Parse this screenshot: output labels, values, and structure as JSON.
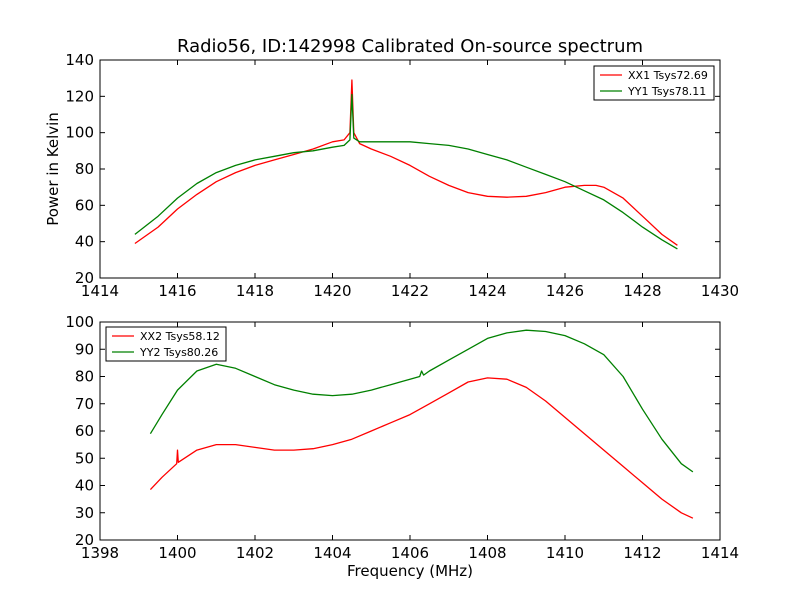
{
  "chart_data": [
    {
      "type": "line",
      "title": "Radio56, ID:142998 Calibrated On-source spectrum",
      "xlabel": "",
      "ylabel": "Power in Kelvin",
      "xlim": [
        1414,
        1430
      ],
      "ylim": [
        20,
        140
      ],
      "xticks": [
        "1414",
        "1416",
        "1418",
        "1420",
        "1422",
        "1424",
        "1426",
        "1428",
        "1430"
      ],
      "yticks": [
        "20",
        "40",
        "60",
        "80",
        "100",
        "120",
        "140"
      ],
      "legend": "top-right",
      "series": [
        {
          "name": "XX1 Tsys72.69",
          "color": "#ff0000",
          "x": [
            1414.9,
            1415.5,
            1416,
            1416.5,
            1417,
            1417.5,
            1418,
            1418.5,
            1419,
            1419.5,
            1420,
            1420.3,
            1420.45,
            1420.5,
            1420.55,
            1420.7,
            1421,
            1421.5,
            1422,
            1422.5,
            1423,
            1423.5,
            1424,
            1424.5,
            1425,
            1425.5,
            1426,
            1426.5,
            1426.8,
            1427,
            1427.5,
            1428,
            1428.5,
            1428.9
          ],
          "values": [
            39,
            48,
            58,
            66,
            73,
            78,
            82,
            85,
            88,
            91,
            95,
            96,
            100,
            129,
            100,
            94,
            91,
            87,
            82,
            76,
            71,
            67,
            65,
            64.5,
            65,
            67,
            70,
            71,
            71,
            70,
            64,
            54,
            44,
            38
          ]
        },
        {
          "name": "YY1 Tsys78.11",
          "color": "#008000",
          "x": [
            1414.9,
            1415.5,
            1416,
            1416.5,
            1417,
            1417.5,
            1418,
            1418.5,
            1419,
            1419.5,
            1420,
            1420.3,
            1420.45,
            1420.5,
            1420.55,
            1420.7,
            1421,
            1421.5,
            1422,
            1422.5,
            1423,
            1423.5,
            1424,
            1424.5,
            1425,
            1425.5,
            1426,
            1426.5,
            1427,
            1427.5,
            1428,
            1428.5,
            1428.9
          ],
          "values": [
            44,
            54,
            64,
            72,
            78,
            82,
            85,
            87,
            89,
            90,
            92,
            93,
            96,
            121,
            97,
            95,
            95,
            95,
            95,
            94,
            93,
            91,
            88,
            85,
            81,
            77,
            73,
            68,
            63,
            56,
            48,
            41,
            36
          ]
        }
      ]
    },
    {
      "type": "line",
      "title": "",
      "xlabel": "Frequency (MHz)",
      "ylabel": "",
      "xlim": [
        1398,
        1414
      ],
      "ylim": [
        20,
        100
      ],
      "xticks": [
        "1398",
        "1400",
        "1402",
        "1404",
        "1406",
        "1408",
        "1410",
        "1412",
        "1414"
      ],
      "yticks": [
        "20",
        "30",
        "40",
        "50",
        "60",
        "70",
        "80",
        "90",
        "100"
      ],
      "legend": "top-left",
      "series": [
        {
          "name": "XX2 Tsys58.12",
          "color": "#ff0000",
          "x": [
            1399.3,
            1399.6,
            1399.98,
            1400,
            1400.02,
            1400.5,
            1401,
            1401.5,
            1402,
            1402.5,
            1403,
            1403.5,
            1404,
            1404.5,
            1405,
            1405.5,
            1406,
            1406.5,
            1407,
            1407.5,
            1408,
            1408.5,
            1409,
            1409.5,
            1410,
            1410.5,
            1411,
            1411.5,
            1412,
            1412.5,
            1413,
            1413.3
          ],
          "values": [
            38.5,
            43,
            48,
            53,
            48.5,
            53,
            55,
            55,
            54,
            53,
            53,
            53.5,
            55,
            57,
            60,
            63,
            66,
            70,
            74,
            78,
            79.5,
            79,
            76,
            71,
            65,
            59,
            53,
            47,
            41,
            35,
            30,
            28
          ]
        },
        {
          "name": "YY2 Tsys80.26",
          "color": "#008000",
          "x": [
            1399.3,
            1399.6,
            1400,
            1400.5,
            1401,
            1401.5,
            1402,
            1402.5,
            1403,
            1403.5,
            1404,
            1404.5,
            1405,
            1405.5,
            1406,
            1406.25,
            1406.3,
            1406.35,
            1406.5,
            1407,
            1407.5,
            1408,
            1408.5,
            1409,
            1409.5,
            1410,
            1410.5,
            1411,
            1411.5,
            1412,
            1412.5,
            1413,
            1413.3
          ],
          "values": [
            59,
            66,
            75,
            82,
            84.5,
            83,
            80,
            77,
            75,
            73.5,
            73,
            73.5,
            75,
            77,
            79,
            80,
            82,
            80.5,
            82,
            86,
            90,
            94,
            96,
            97,
            96.5,
            95,
            92,
            88,
            80,
            68,
            57,
            48,
            45
          ]
        }
      ]
    }
  ]
}
